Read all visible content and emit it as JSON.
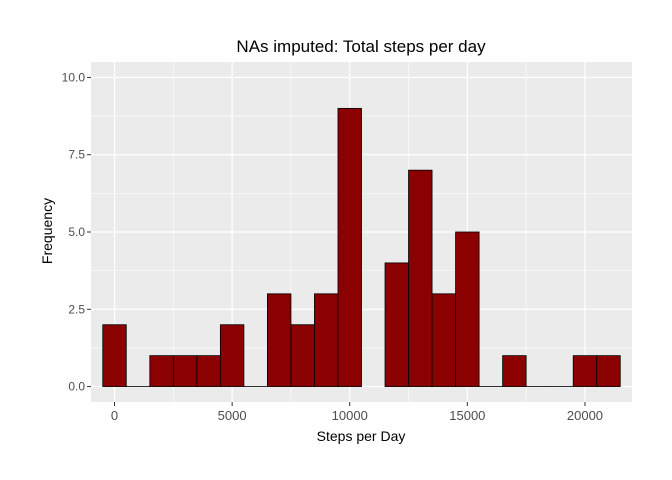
{
  "chart_data": {
    "type": "bar",
    "title": "NAs imputed: Total steps per day",
    "xlabel": "Steps per Day",
    "ylabel": "Frequency",
    "bin_width": 1000,
    "bins": [
      {
        "x": 0,
        "value": 2
      },
      {
        "x": 1000,
        "value": 0
      },
      {
        "x": 2000,
        "value": 1
      },
      {
        "x": 3000,
        "value": 1
      },
      {
        "x": 4000,
        "value": 1
      },
      {
        "x": 5000,
        "value": 2
      },
      {
        "x": 6000,
        "value": 0
      },
      {
        "x": 7000,
        "value": 3
      },
      {
        "x": 8000,
        "value": 2
      },
      {
        "x": 9000,
        "value": 3
      },
      {
        "x": 10000,
        "value": 9
      },
      {
        "x": 12000,
        "value": 4
      },
      {
        "x": 13000,
        "value": 7
      },
      {
        "x": 14000,
        "value": 3
      },
      {
        "x": 15000,
        "value": 5
      },
      {
        "x": 16000,
        "value": 0
      },
      {
        "x": 17000,
        "value": 1
      },
      {
        "x": 18000,
        "value": 0
      },
      {
        "x": 19000,
        "value": 0
      },
      {
        "x": 20000,
        "value": 1
      },
      {
        "x": 21000,
        "value": 1
      }
    ],
    "xlim": [
      -1000,
      22000
    ],
    "ylim": [
      -0.5,
      10.5
    ],
    "x_ticks": [
      0,
      5000,
      10000,
      15000,
      20000
    ],
    "x_tick_labels": [
      "0",
      "5000",
      "10000",
      "15000",
      "20000"
    ],
    "y_ticks": [
      0,
      2.5,
      5,
      7.5,
      10
    ],
    "y_tick_labels": [
      "0.0",
      "2.5",
      "5.0",
      "7.5",
      "10.0"
    ],
    "grid": true,
    "colors": {
      "bar_fill": "#8b0000",
      "bar_stroke": "#000000",
      "panel_bg": "#ebebeb",
      "grid": "#ffffff"
    }
  }
}
